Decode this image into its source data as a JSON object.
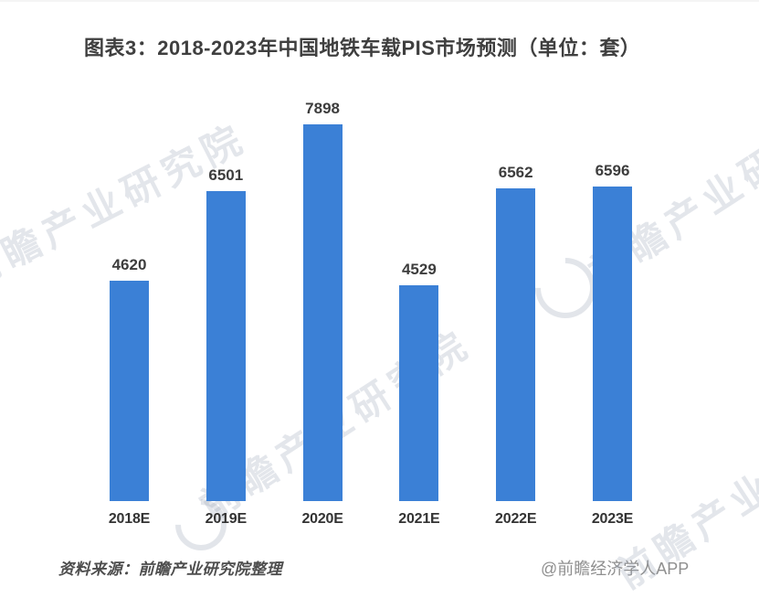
{
  "title": {
    "text": "图表3：2018-2023年中国地铁车载PIS市场预测（单位：套）"
  },
  "chart_data": {
    "type": "bar",
    "title": "2018-2023年中国地铁车载PIS市场预测",
    "unit_label": "单位：套",
    "categories": [
      "2018E",
      "2019E",
      "2020E",
      "2021E",
      "2022E",
      "2023E"
    ],
    "values": [
      4620,
      6501,
      7898,
      4529,
      6562,
      6596
    ],
    "xlabel": "",
    "ylabel": "",
    "ylim": [
      0,
      8400
    ],
    "grid": false,
    "legend_position": "none",
    "value_labels": "above-bars",
    "bar_color": "#3B80D6",
    "value_label_color": "#3d3d3d",
    "axis_label_color": "#333333"
  },
  "watermark": {
    "text": "前瞻产业研究院",
    "logo_name": "qianzhan-swirl-logo",
    "color": "#92a0b4"
  },
  "footer": {
    "source_text": "资料来源：前瞻产业研究院整理",
    "credit_text": "@前瞻经济学人APP"
  }
}
